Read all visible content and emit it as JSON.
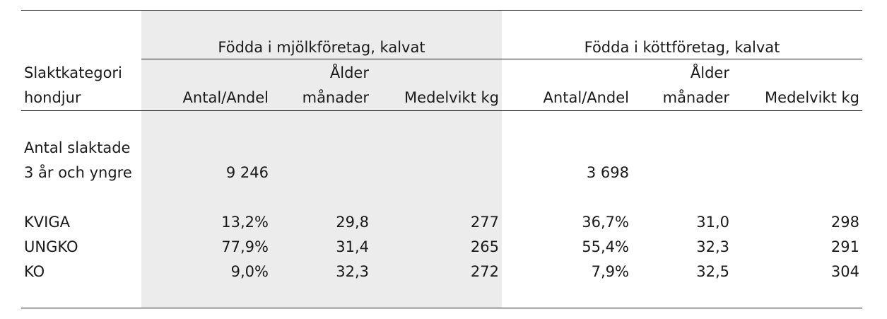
{
  "groups": {
    "dairy": "Födda i mjölkföretag, kalvat",
    "beef": "Födda i köttföretag, kalvat"
  },
  "headers": {
    "category_line1": "Slaktkategori",
    "category_line2": "hondjur",
    "count": "Antal/Andel",
    "age_line1": "Ålder",
    "age_line2": "månader",
    "weight": "Medelvikt kg"
  },
  "total": {
    "label_line1": "Antal slaktade",
    "label_line2": "3 år och yngre",
    "dairy_count": "9 246",
    "beef_count": "3 698"
  },
  "rows": [
    {
      "label": "KVIGA",
      "dairy_share": "13,2%",
      "dairy_age": "29,8",
      "dairy_weight": "277",
      "beef_share": "36,7%",
      "beef_age": "31,0",
      "beef_weight": "298"
    },
    {
      "label": "UNGKO",
      "dairy_share": "77,9%",
      "dairy_age": "31,4",
      "dairy_weight": "265",
      "beef_share": "55,4%",
      "beef_age": "32,3",
      "beef_weight": "291"
    },
    {
      "label": "KO",
      "dairy_share": "9,0%",
      "dairy_age": "32,3",
      "dairy_weight": "272",
      "beef_share": "7,9%",
      "beef_age": "32,5",
      "beef_weight": "304"
    }
  ]
}
